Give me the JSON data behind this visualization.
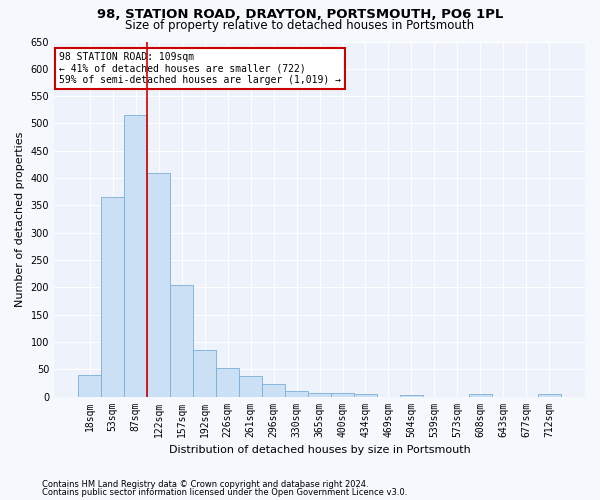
{
  "title1": "98, STATION ROAD, DRAYTON, PORTSMOUTH, PO6 1PL",
  "title2": "Size of property relative to detached houses in Portsmouth",
  "xlabel": "Distribution of detached houses by size in Portsmouth",
  "ylabel": "Number of detached properties",
  "categories": [
    "18sqm",
    "53sqm",
    "87sqm",
    "122sqm",
    "157sqm",
    "192sqm",
    "226sqm",
    "261sqm",
    "296sqm",
    "330sqm",
    "365sqm",
    "400sqm",
    "434sqm",
    "469sqm",
    "504sqm",
    "539sqm",
    "573sqm",
    "608sqm",
    "643sqm",
    "677sqm",
    "712sqm"
  ],
  "values": [
    40,
    365,
    515,
    410,
    205,
    85,
    52,
    37,
    23,
    10,
    7,
    7,
    5,
    0,
    3,
    0,
    0,
    4,
    0,
    0,
    4
  ],
  "bar_color": "#cce0f5",
  "bar_edge_color": "#7aaed6",
  "vline_x_index": 2,
  "vline_color": "#cc0000",
  "annotation_line1": "98 STATION ROAD: 109sqm",
  "annotation_line2": "← 41% of detached houses are smaller (722)",
  "annotation_line3": "59% of semi-detached houses are larger (1,019) →",
  "annotation_box_color": "#ffffff",
  "annotation_box_edge_color": "#cc0000",
  "ylim": [
    0,
    650
  ],
  "yticks": [
    0,
    50,
    100,
    150,
    200,
    250,
    300,
    350,
    400,
    450,
    500,
    550,
    600,
    650
  ],
  "footnote1": "Contains HM Land Registry data © Crown copyright and database right 2024.",
  "footnote2": "Contains public sector information licensed under the Open Government Licence v3.0.",
  "title1_fontsize": 9.5,
  "title2_fontsize": 8.5,
  "xlabel_fontsize": 8,
  "ylabel_fontsize": 8,
  "tick_fontsize": 7,
  "annotation_fontsize": 7,
  "footnote_fontsize": 6,
  "bg_color": "#f5f8fd",
  "plot_bg_color": "#eef3fb"
}
